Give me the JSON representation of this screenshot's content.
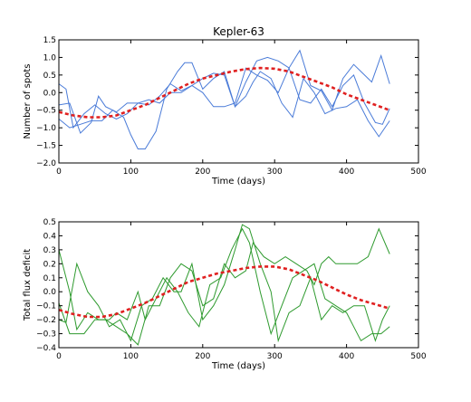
{
  "chart_data": [
    {
      "type": "line",
      "title": "Kepler-63",
      "xlabel": "Time (days)",
      "ylabel": "Number of spots",
      "xlim": [
        0,
        500
      ],
      "ylim": [
        -2.0,
        1.5
      ],
      "xticks": [
        0,
        100,
        200,
        300,
        400,
        500
      ],
      "yticks": [
        -2.0,
        -1.5,
        -1.0,
        -0.5,
        0.0,
        0.5,
        1.0,
        1.5
      ],
      "yticks_fmt": 1,
      "grid": false,
      "series": [
        {
          "color": "#4a7bd8",
          "style": "solid",
          "points": [
            [
              0,
              0.25
            ],
            [
              10,
              0.1
            ],
            [
              20,
              -1.0
            ],
            [
              35,
              -0.6
            ],
            [
              50,
              -0.35
            ],
            [
              65,
              -0.6
            ],
            [
              80,
              -0.75
            ],
            [
              95,
              -0.6
            ],
            [
              110,
              -0.3
            ],
            [
              125,
              -0.2
            ],
            [
              140,
              -0.3
            ],
            [
              155,
              0.0
            ],
            [
              170,
              0.0
            ],
            [
              185,
              0.2
            ],
            [
              200,
              0.0
            ],
            [
              215,
              -0.4
            ],
            [
              230,
              -0.4
            ],
            [
              245,
              -0.3
            ],
            [
              260,
              0.7
            ],
            [
              275,
              0.5
            ],
            [
              290,
              0.35
            ],
            [
              305,
              0.0
            ],
            [
              320,
              0.7
            ],
            [
              335,
              -0.2
            ],
            [
              350,
              -0.3
            ],
            [
              365,
              0.1
            ],
            [
              380,
              -0.4
            ],
            [
              395,
              0.2
            ],
            [
              410,
              0.5
            ],
            [
              425,
              -0.3
            ],
            [
              440,
              -0.85
            ],
            [
              450,
              -0.9
            ],
            [
              460,
              -0.45
            ]
          ]
        },
        {
          "color": "#4a7bd8",
          "style": "solid",
          "points": [
            [
              0,
              -0.75
            ],
            [
              15,
              -1.0
            ],
            [
              30,
              -0.9
            ],
            [
              45,
              -0.8
            ],
            [
              60,
              -0.8
            ],
            [
              75,
              -0.5
            ],
            [
              90,
              -0.7
            ],
            [
              100,
              -1.2
            ],
            [
              110,
              -1.6
            ],
            [
              120,
              -1.6
            ],
            [
              135,
              -1.1
            ],
            [
              150,
              0.1
            ],
            [
              165,
              0.6
            ],
            [
              175,
              0.85
            ],
            [
              185,
              0.85
            ],
            [
              200,
              0.1
            ],
            [
              215,
              0.4
            ],
            [
              230,
              0.6
            ],
            [
              245,
              -0.4
            ],
            [
              260,
              -0.1
            ],
            [
              270,
              0.3
            ],
            [
              280,
              0.6
            ],
            [
              295,
              0.4
            ],
            [
              310,
              -0.3
            ],
            [
              325,
              -0.7
            ],
            [
              340,
              0.4
            ],
            [
              355,
              0.0
            ],
            [
              370,
              -0.6
            ],
            [
              385,
              -0.45
            ],
            [
              400,
              -0.4
            ],
            [
              415,
              -0.2
            ],
            [
              430,
              -0.8
            ],
            [
              445,
              -1.25
            ],
            [
              460,
              -0.8
            ]
          ]
        },
        {
          "color": "#4a7bd8",
          "style": "solid",
          "points": [
            [
              0,
              -0.35
            ],
            [
              15,
              -0.3
            ],
            [
              30,
              -1.15
            ],
            [
              45,
              -0.85
            ],
            [
              55,
              -0.1
            ],
            [
              65,
              -0.4
            ],
            [
              80,
              -0.55
            ],
            [
              95,
              -0.3
            ],
            [
              110,
              -0.3
            ],
            [
              125,
              -0.35
            ],
            [
              140,
              -0.1
            ],
            [
              155,
              0.25
            ],
            [
              170,
              0.05
            ],
            [
              185,
              0.2
            ],
            [
              200,
              0.4
            ],
            [
              215,
              0.55
            ],
            [
              230,
              0.5
            ],
            [
              245,
              -0.4
            ],
            [
              260,
              0.3
            ],
            [
              275,
              0.9
            ],
            [
              290,
              1.0
            ],
            [
              305,
              0.9
            ],
            [
              320,
              0.7
            ],
            [
              335,
              1.2
            ],
            [
              350,
              0.2
            ],
            [
              365,
              0.05
            ],
            [
              380,
              -0.5
            ],
            [
              395,
              0.4
            ],
            [
              410,
              0.8
            ],
            [
              420,
              0.6
            ],
            [
              435,
              0.3
            ],
            [
              448,
              1.05
            ],
            [
              460,
              0.25
            ]
          ]
        },
        {
          "color": "#e02020",
          "style": "dashed",
          "points": [
            [
              0,
              -0.55
            ],
            [
              20,
              -0.65
            ],
            [
              40,
              -0.7
            ],
            [
              60,
              -0.7
            ],
            [
              80,
              -0.65
            ],
            [
              100,
              -0.5
            ],
            [
              120,
              -0.35
            ],
            [
              140,
              -0.15
            ],
            [
              160,
              0.05
            ],
            [
              180,
              0.25
            ],
            [
              200,
              0.4
            ],
            [
              220,
              0.5
            ],
            [
              240,
              0.6
            ],
            [
              260,
              0.67
            ],
            [
              280,
              0.7
            ],
            [
              300,
              0.68
            ],
            [
              320,
              0.6
            ],
            [
              340,
              0.45
            ],
            [
              360,
              0.3
            ],
            [
              380,
              0.15
            ],
            [
              400,
              -0.05
            ],
            [
              420,
              -0.2
            ],
            [
              440,
              -0.35
            ],
            [
              460,
              -0.5
            ]
          ]
        }
      ]
    },
    {
      "type": "line",
      "title": "",
      "xlabel": "Time (days)",
      "ylabel": "Total flux deficit",
      "xlim": [
        0,
        500
      ],
      "ylim": [
        -0.4,
        0.5
      ],
      "xticks": [
        0,
        100,
        200,
        300,
        400,
        500
      ],
      "yticks": [
        -0.4,
        -0.3,
        -0.2,
        -0.1,
        0.0,
        0.1,
        0.2,
        0.3,
        0.4,
        0.5
      ],
      "yticks_fmt": 1,
      "grid": false,
      "series": [
        {
          "color": "#2e9a2e",
          "style": "solid",
          "points": [
            [
              0,
              0.3
            ],
            [
              15,
              0.0
            ],
            [
              25,
              -0.27
            ],
            [
              40,
              -0.15
            ],
            [
              55,
              -0.2
            ],
            [
              70,
              -0.2
            ],
            [
              80,
              -0.15
            ],
            [
              95,
              -0.2
            ],
            [
              110,
              0.0
            ],
            [
              120,
              -0.2
            ],
            [
              135,
              -0.05
            ],
            [
              150,
              0.1
            ],
            [
              165,
              0.0
            ],
            [
              180,
              -0.15
            ],
            [
              195,
              -0.25
            ],
            [
              210,
              0.05
            ],
            [
              225,
              0.1
            ],
            [
              240,
              0.3
            ],
            [
              255,
              0.45
            ],
            [
              265,
              0.35
            ],
            [
              280,
              0.0
            ],
            [
              295,
              -0.3
            ],
            [
              310,
              -0.1
            ],
            [
              325,
              0.1
            ],
            [
              340,
              0.15
            ],
            [
              355,
              0.2
            ],
            [
              370,
              -0.05
            ],
            [
              385,
              -0.1
            ],
            [
              400,
              -0.15
            ],
            [
              410,
              -0.25
            ],
            [
              420,
              -0.35
            ],
            [
              435,
              -0.3
            ],
            [
              448,
              -0.3
            ],
            [
              460,
              -0.25
            ]
          ]
        },
        {
          "color": "#2e9a2e",
          "style": "solid",
          "points": [
            [
              0,
              -0.2
            ],
            [
              10,
              -0.22
            ],
            [
              25,
              0.2
            ],
            [
              40,
              0.0
            ],
            [
              55,
              -0.1
            ],
            [
              70,
              -0.25
            ],
            [
              85,
              -0.2
            ],
            [
              100,
              -0.35
            ],
            [
              115,
              -0.1
            ],
            [
              130,
              -0.05
            ],
            [
              145,
              0.1
            ],
            [
              160,
              0.0
            ],
            [
              170,
              0.0
            ],
            [
              185,
              0.2
            ],
            [
              200,
              -0.2
            ],
            [
              215,
              -0.1
            ],
            [
              230,
              0.05
            ],
            [
              245,
              0.3
            ],
            [
              255,
              0.48
            ],
            [
              265,
              0.45
            ],
            [
              280,
              0.2
            ],
            [
              295,
              0.0
            ],
            [
              305,
              -0.35
            ],
            [
              320,
              -0.15
            ],
            [
              335,
              -0.1
            ],
            [
              350,
              0.1
            ],
            [
              365,
              -0.2
            ],
            [
              380,
              -0.1
            ],
            [
              395,
              -0.15
            ],
            [
              410,
              -0.1
            ],
            [
              425,
              -0.1
            ],
            [
              440,
              -0.35
            ],
            [
              450,
              -0.2
            ],
            [
              460,
              -0.1
            ]
          ]
        },
        {
          "color": "#2e9a2e",
          "style": "solid",
          "points": [
            [
              0,
              -0.08
            ],
            [
              15,
              -0.3
            ],
            [
              35,
              -0.3
            ],
            [
              50,
              -0.2
            ],
            [
              65,
              -0.2
            ],
            [
              80,
              -0.25
            ],
            [
              95,
              -0.3
            ],
            [
              110,
              -0.38
            ],
            [
              125,
              -0.1
            ],
            [
              140,
              -0.1
            ],
            [
              155,
              0.1
            ],
            [
              170,
              0.2
            ],
            [
              185,
              0.15
            ],
            [
              200,
              -0.1
            ],
            [
              215,
              -0.05
            ],
            [
              230,
              0.2
            ],
            [
              245,
              0.1
            ],
            [
              260,
              0.15
            ],
            [
              270,
              0.35
            ],
            [
              285,
              0.25
            ],
            [
              300,
              0.2
            ],
            [
              315,
              0.25
            ],
            [
              330,
              0.2
            ],
            [
              345,
              0.15
            ],
            [
              355,
              0.05
            ],
            [
              365,
              0.2
            ],
            [
              375,
              0.25
            ],
            [
              385,
              0.2
            ],
            [
              400,
              0.2
            ],
            [
              415,
              0.2
            ],
            [
              430,
              0.25
            ],
            [
              445,
              0.45
            ],
            [
              460,
              0.27
            ]
          ]
        },
        {
          "color": "#e02020",
          "style": "dashed",
          "points": [
            [
              0,
              -0.13
            ],
            [
              20,
              -0.16
            ],
            [
              40,
              -0.18
            ],
            [
              60,
              -0.18
            ],
            [
              80,
              -0.16
            ],
            [
              100,
              -0.12
            ],
            [
              120,
              -0.08
            ],
            [
              140,
              -0.03
            ],
            [
              160,
              0.02
            ],
            [
              180,
              0.07
            ],
            [
              200,
              0.1
            ],
            [
              220,
              0.13
            ],
            [
              240,
              0.15
            ],
            [
              260,
              0.17
            ],
            [
              280,
              0.18
            ],
            [
              300,
              0.18
            ],
            [
              320,
              0.16
            ],
            [
              340,
              0.12
            ],
            [
              360,
              0.08
            ],
            [
              380,
              0.03
            ],
            [
              400,
              -0.02
            ],
            [
              420,
              -0.06
            ],
            [
              440,
              -0.09
            ],
            [
              460,
              -0.12
            ]
          ]
        }
      ]
    }
  ]
}
